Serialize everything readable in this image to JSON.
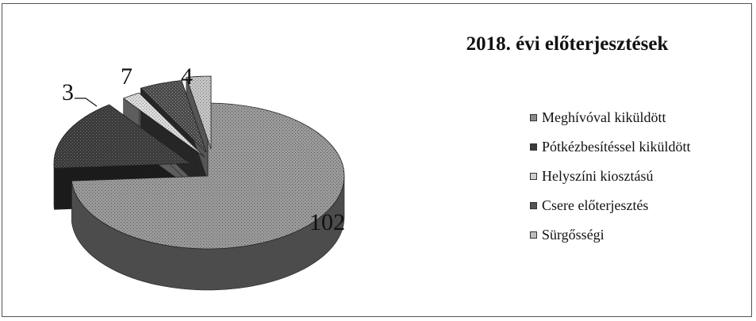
{
  "chart_data": {
    "type": "pie",
    "title": "2018. évi előterjesztések",
    "categories": [
      "Meghívóval kiküldött",
      "Pótkézbesítéssel kiküldött",
      "Helyszíni kiosztású",
      "Csere előterjesztés",
      "Sürgősségi"
    ],
    "values": [
      102,
      22,
      3,
      7,
      4
    ],
    "data_labels": [
      "102",
      "",
      "3",
      "7",
      "4"
    ],
    "colors": [
      "#8a8a8a",
      "#3c3c3c",
      "#cfcfcf",
      "#555555",
      "#bdbdbd"
    ],
    "exploded": true,
    "three_d": true,
    "legend_position": "right"
  }
}
